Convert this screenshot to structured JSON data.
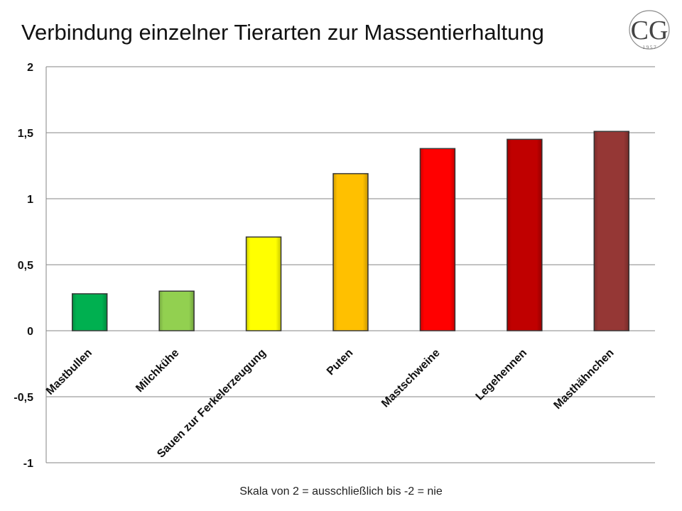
{
  "chart_data": {
    "type": "bar",
    "title": "Verbindung einzelner Tierarten zur Massentierhaltung",
    "footnote": "Skala von 2 = ausschließlich bis -2 = nie",
    "categories": [
      "Mastbullen",
      "Milchkühe",
      "Sauen zur Ferkelerzeugung",
      "Puten",
      "Mastschweine",
      "Legehennen",
      "Masthähnchen"
    ],
    "values": [
      0.28,
      0.3,
      0.71,
      1.19,
      1.38,
      1.45,
      1.51
    ],
    "colors": [
      "#00b050",
      "#92d050",
      "#ffff00",
      "#ffc000",
      "#ff0000",
      "#c00000",
      "#953735"
    ],
    "ylim": [
      -1,
      2
    ],
    "yticks": [
      2,
      1.5,
      1,
      0.5,
      0,
      -0.5,
      -1
    ],
    "ytick_labels": [
      "2",
      "1,5",
      "1",
      "0,5",
      "0",
      "-0,5",
      "-1"
    ],
    "grid": true,
    "legend": "none"
  },
  "logo": {
    "letters": "CG",
    "year": "1 9 5 7"
  }
}
